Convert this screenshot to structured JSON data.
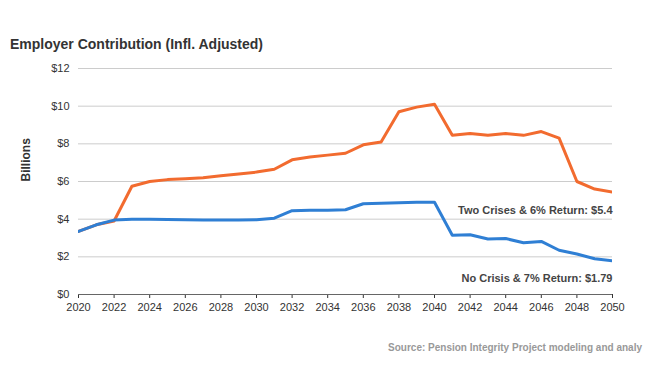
{
  "chart_data": {
    "type": "line",
    "title": "Employer Contribution (Infl. Adjusted)",
    "y_label": "Billions",
    "source": "Source:  Pension Integrity Project modeling and analy",
    "x": [
      2020,
      2021,
      2022,
      2023,
      2024,
      2025,
      2026,
      2027,
      2028,
      2029,
      2030,
      2031,
      2032,
      2033,
      2034,
      2035,
      2036,
      2037,
      2038,
      2039,
      2040,
      2041,
      2042,
      2043,
      2044,
      2045,
      2046,
      2047,
      2048,
      2049,
      2050
    ],
    "series": [
      {
        "name": "Two Crises & 6% Return: $5.4",
        "color": "#f26b2f",
        "values": [
          3.35,
          3.7,
          3.9,
          5.75,
          6.0,
          6.1,
          6.15,
          6.2,
          6.3,
          6.4,
          6.5,
          6.65,
          7.15,
          7.3,
          7.4,
          7.5,
          7.95,
          8.1,
          9.7,
          9.95,
          10.1,
          8.45,
          8.55,
          8.45,
          8.55,
          8.45,
          8.65,
          8.3,
          6.0,
          5.6,
          5.44
        ]
      },
      {
        "name": "No Crisis & 7% Return: $1.79",
        "color": "#2f7fd4",
        "values": [
          3.35,
          3.7,
          3.95,
          4.0,
          4.0,
          3.98,
          3.97,
          3.96,
          3.96,
          3.96,
          3.97,
          4.05,
          4.45,
          4.47,
          4.48,
          4.5,
          4.82,
          4.85,
          4.87,
          4.9,
          4.9,
          3.15,
          3.17,
          2.95,
          2.97,
          2.75,
          2.82,
          2.35,
          2.15,
          1.9,
          1.79
        ]
      }
    ],
    "xlim": [
      2020,
      2050
    ],
    "xticks": [
      2020,
      2022,
      2024,
      2026,
      2028,
      2030,
      2032,
      2034,
      2036,
      2038,
      2040,
      2042,
      2044,
      2046,
      2048,
      2050
    ],
    "ylim": [
      0,
      12
    ],
    "yticks": [
      {
        "value": 0,
        "label": "$0"
      },
      {
        "value": 2,
        "label": "$2"
      },
      {
        "value": 4,
        "label": "$4"
      },
      {
        "value": 6,
        "label": "$6"
      },
      {
        "value": 8,
        "label": "$8"
      },
      {
        "value": 10,
        "label": "$10"
      },
      {
        "value": 12,
        "label": "$12"
      }
    ],
    "grid": true
  }
}
